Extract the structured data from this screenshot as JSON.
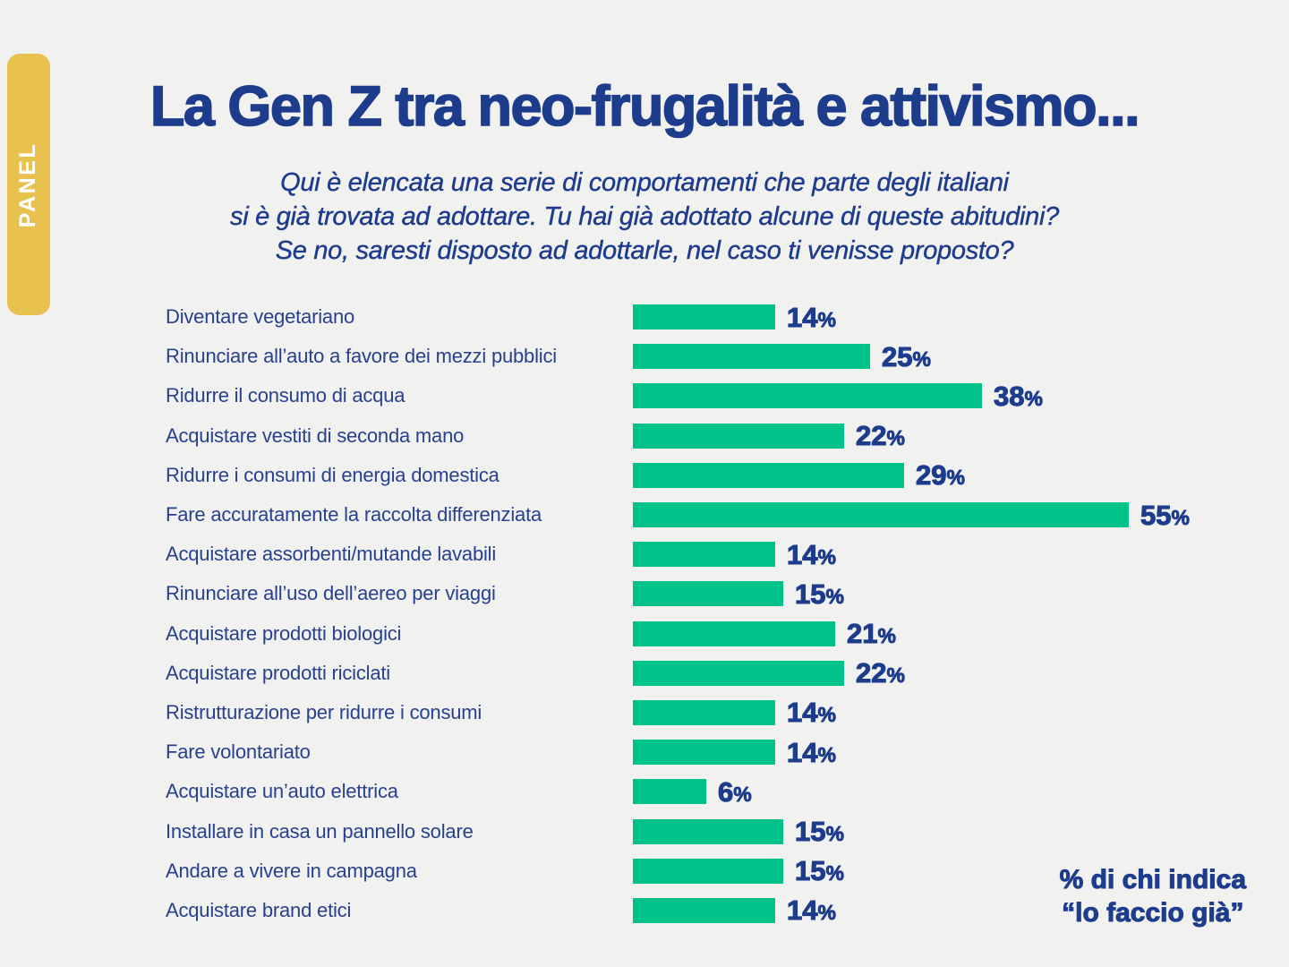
{
  "colors": {
    "background": "#F1F1F0",
    "navy": "#1E3C8C",
    "label_blue": "#27418F",
    "green": "#00C389",
    "yellow": "#E9C14F",
    "panel_text": "#FFFFFF"
  },
  "panel_tab": {
    "label": "PANEL"
  },
  "header": {
    "title": "La Gen Z tra neo-frugalità e attivismo...",
    "subtitle_lines": [
      "Qui è elencata una serie di comportamenti che parte degli italiani",
      "si è già trovata ad adottare. Tu hai già adottato alcune di queste abitudini?",
      "Se no, saresti disposto ad adottarle, nel caso ti venisse proposto?"
    ]
  },
  "chart_data": {
    "type": "bar",
    "orientation": "horizontal",
    "title": "La Gen Z tra neo-frugalità e attivismo...",
    "value_suffix": "%",
    "xlim": [
      0,
      55
    ],
    "grid": false,
    "legend": false,
    "bar_color": "#00C389",
    "categories": [
      "Diventare vegetariano",
      "Rinunciare all’auto a favore dei mezzi pubblici",
      "Ridurre il consumo di acqua",
      "Acquistare vestiti di seconda mano",
      "Ridurre i consumi di energia domestica",
      "Fare accuratamente la raccolta differenziata",
      "Acquistare assorbenti/mutande lavabili",
      "Rinunciare all’uso dell’aereo per viaggi",
      "Acquistare prodotti biologici",
      "Acquistare prodotti riciclati",
      "Ristrutturazione per ridurre i consumi",
      "Fare volontariato",
      "Acquistare un’auto elettrica",
      "Installare in casa un pannello solare",
      "Andare a vivere in campagna",
      "Acquistare brand etici"
    ],
    "values": [
      14,
      25,
      38,
      22,
      29,
      55,
      14,
      15,
      21,
      22,
      14,
      14,
      6,
      15,
      15,
      14
    ],
    "note": "% di chi indica “lo faccio già”"
  },
  "footnote": {
    "line1": "% di chi indica",
    "line2": "“lo faccio già”"
  }
}
